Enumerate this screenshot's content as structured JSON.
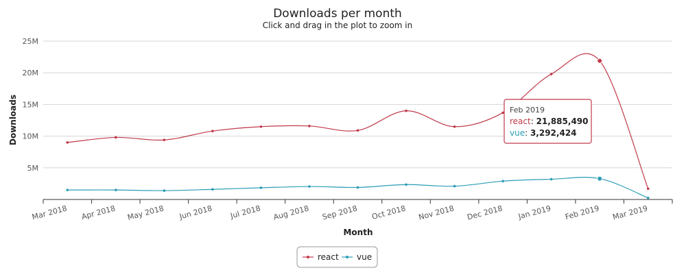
{
  "chart_data": {
    "type": "line",
    "title": "Downloads per month",
    "subtitle": "Click and drag in the plot to zoom in",
    "xlabel": "Month",
    "ylabel": "Downloads",
    "categories": [
      "Mar 2018",
      "Apr 2018",
      "May 2018",
      "Jun 2018",
      "Jul 2018",
      "Aug 2018",
      "Sep 2018",
      "Oct 2018",
      "Nov 2018",
      "Dec 2018",
      "Jan 2019",
      "Feb 2019",
      "Mar 2019"
    ],
    "ylim": [
      0,
      25000000
    ],
    "yticks": [
      {
        "value": 5000000,
        "label": "5M"
      },
      {
        "value": 10000000,
        "label": "10M"
      },
      {
        "value": 15000000,
        "label": "15M"
      },
      {
        "value": 20000000,
        "label": "20M"
      },
      {
        "value": 25000000,
        "label": "25M"
      }
    ],
    "grid": true,
    "legend_position": "bottom-center",
    "series": [
      {
        "name": "react",
        "color": "#c0394a",
        "values": [
          9000000,
          9800000,
          9400000,
          10800000,
          11500000,
          11600000,
          10900000,
          14000000,
          11500000,
          13700000,
          19800000,
          21885490,
          1700000
        ]
      },
      {
        "name": "vue",
        "color": "#2a9db5",
        "values": [
          1500000,
          1500000,
          1400000,
          1600000,
          1850000,
          2050000,
          1900000,
          2350000,
          2100000,
          2900000,
          3200000,
          3292424,
          250000
        ]
      }
    ],
    "tooltip": {
      "header": "Feb 2019",
      "index": 11,
      "rows": [
        {
          "name": "react",
          "value": "21,885,490",
          "color": "#c0394a"
        },
        {
          "name": "vue",
          "value": "3,292,424",
          "color": "#2a9db5"
        }
      ]
    }
  }
}
